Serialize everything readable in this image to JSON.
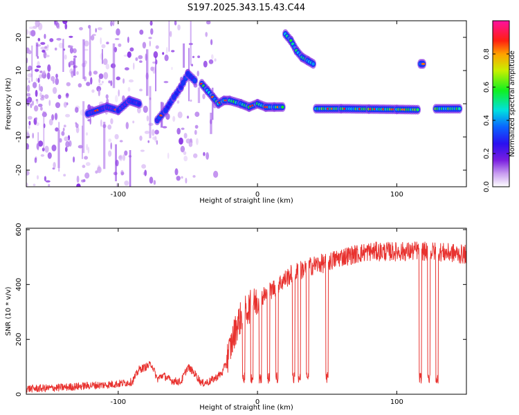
{
  "title": "S197.2025.343.15.43.C44",
  "chart_data": [
    {
      "type": "heatmap",
      "xlabel": "Height of straight line (km)",
      "ylabel": "Frequency (Hz)",
      "xlim": [
        -166,
        150
      ],
      "ylim": [
        -25,
        25
      ],
      "xticks": [
        -100,
        0,
        100
      ],
      "yticks": [
        20,
        10,
        0,
        -10,
        -20
      ],
      "colorbar": {
        "label": "Normalized spectral amplitude",
        "range": [
          0,
          1
        ],
        "ticks": [
          "0.0",
          "0.2",
          "0.4",
          "0.6",
          "0.8"
        ],
        "tick_values": [
          0,
          0.2,
          0.4,
          0.6,
          0.8
        ]
      },
      "ridges": [
        {
          "x": [
            -122,
            -108,
            -100,
            -92,
            -85
          ],
          "y": [
            -3,
            -1,
            -2,
            1,
            0
          ],
          "amp": 0.22
        },
        {
          "x": [
            -72,
            -66,
            -60,
            -55,
            -50,
            -45
          ],
          "y": [
            -5,
            -2,
            2,
            5,
            9,
            7
          ],
          "amp": 0.28
        },
        {
          "x": [
            -40,
            -36,
            -32,
            -28,
            -24,
            -20,
            -12,
            -6,
            0,
            6,
            12,
            18
          ],
          "y": [
            6,
            4,
            2,
            0,
            1,
            1,
            0,
            -1,
            0,
            -1,
            -1,
            -1
          ],
          "amp": 0.5
        },
        {
          "x": [
            20,
            24,
            28,
            32,
            36,
            40
          ],
          "y": [
            21,
            19,
            16,
            14,
            13,
            12
          ],
          "amp": 0.5
        },
        {
          "x": [
            42,
            60,
            80,
            100,
            115
          ],
          "y": [
            -1.5,
            -1.5,
            -1.6,
            -1.7,
            -1.8
          ],
          "amp": 0.55
        },
        {
          "x": [
            117,
            119
          ],
          "y": [
            12,
            12
          ],
          "amp": 0.4
        },
        {
          "x": [
            128,
            145
          ],
          "y": [
            -1.5,
            -1.5
          ],
          "amp": 0.55
        }
      ],
      "noise_region_km": [
        -166,
        -30
      ]
    },
    {
      "type": "line",
      "xlabel": "Height of straight line (km)",
      "ylabel": "SNR (10 * v/v)",
      "xlim": [
        -166,
        150
      ],
      "ylim": [
        0,
        605
      ],
      "xticks": [
        -100,
        0,
        100
      ],
      "yticks": [
        0,
        200,
        400,
        600
      ],
      "color": "#e8322f",
      "series": [
        {
          "name": "SNR",
          "x": [
            -166,
            -150,
            -130,
            -120,
            -110,
            -100,
            -90,
            -85,
            -80,
            -76,
            -72,
            -68,
            -62,
            -55,
            -50,
            -45,
            -40,
            -35,
            -30,
            -25,
            -20,
            -15,
            -10,
            -5,
            0,
            5,
            10,
            15,
            20,
            25,
            30,
            40,
            50,
            55,
            60,
            70,
            80,
            90,
            100,
            110,
            115,
            120,
            125,
            130,
            135,
            140,
            145,
            150
          ],
          "values": [
            20,
            22,
            28,
            32,
            34,
            38,
            45,
            90,
            100,
            110,
            55,
            70,
            50,
            45,
            100,
            75,
            40,
            45,
            60,
            80,
            160,
            250,
            300,
            320,
            340,
            360,
            380,
            400,
            420,
            440,
            450,
            470,
            480,
            490,
            500,
            510,
            520,
            520,
            520,
            520,
            525,
            520,
            520,
            520,
            515,
            515,
            510,
            510
          ]
        }
      ],
      "dropouts_km": [
        -10,
        -4,
        2,
        8,
        14,
        26,
        30,
        36,
        50,
        117,
        123,
        129
      ]
    }
  ]
}
